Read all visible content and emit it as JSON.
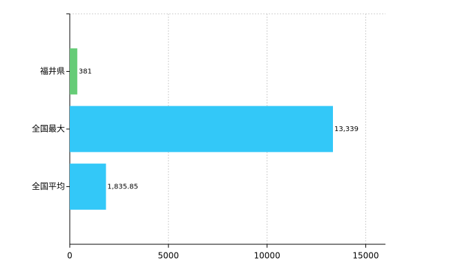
{
  "chart_data": {
    "type": "hbar",
    "categories": [
      "福井県",
      "全国最大",
      "全国平均"
    ],
    "values": [
      381,
      13339,
      1835.85
    ],
    "value_labels": [
      "381",
      "13,339",
      "1,835.85"
    ],
    "colors": [
      "#66cc77",
      "#33c8f8",
      "#33c8f8"
    ],
    "xlim": [
      0,
      16000
    ],
    "xticks": [
      0,
      5000,
      10000,
      15000
    ],
    "grid": true
  }
}
